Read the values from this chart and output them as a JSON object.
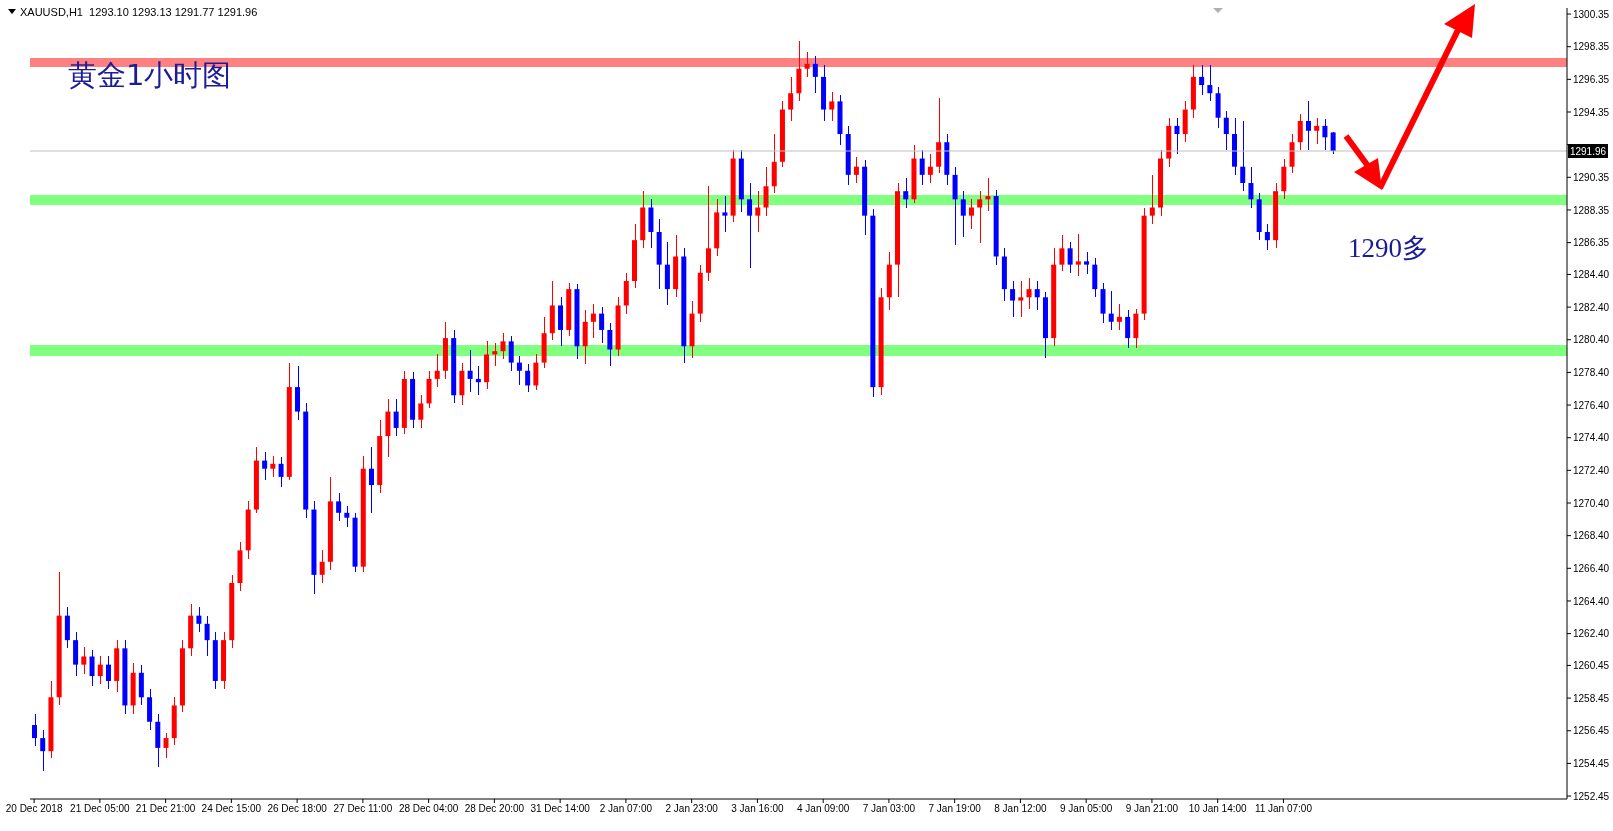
{
  "chart_data": {
    "type": "candlestick",
    "title": "黄金1小时图",
    "annotations": [
      "XAUUSD,H1  1293.10 1293.13 1291.77 1291.96",
      "1290多"
    ],
    "categories": [
      "20 Dec 2018",
      null,
      null,
      null,
      null,
      null,
      null,
      null,
      "21 Dec 05:00",
      null,
      null,
      null,
      null,
      null,
      null,
      null,
      "21 Dec 21:00",
      null,
      null,
      null,
      null,
      null,
      null,
      null,
      "24 Dec 15:00",
      null,
      null,
      null,
      null,
      null,
      null,
      null,
      "26 Dec 18:00",
      null,
      null,
      null,
      null,
      null,
      null,
      null,
      "27 Dec 11:00",
      null,
      null,
      null,
      null,
      null,
      null,
      null,
      "28 Dec 04:00",
      null,
      null,
      null,
      null,
      null,
      null,
      null,
      "28 Dec 20:00",
      null,
      null,
      null,
      null,
      null,
      null,
      null,
      "31 Dec 14:00",
      null,
      null,
      null,
      null,
      null,
      null,
      null,
      "2 Jan 07:00",
      null,
      null,
      null,
      null,
      null,
      null,
      null,
      "2 Jan 23:00",
      null,
      null,
      null,
      null,
      null,
      null,
      null,
      "3 Jan 16:00",
      null,
      null,
      null,
      null,
      null,
      null,
      null,
      "4 Jan 09:00",
      null,
      null,
      null,
      null,
      null,
      null,
      null,
      "7 Jan 03:00",
      null,
      null,
      null,
      null,
      null,
      null,
      null,
      "7 Jan 19:00",
      null,
      null,
      null,
      null,
      null,
      null,
      null,
      "8 Jan 12:00",
      null,
      null,
      null,
      null,
      null,
      null,
      null,
      "9 Jan 05:00",
      null,
      null,
      null,
      null,
      null,
      null,
      null,
      "9 Jan 21:00",
      null,
      null,
      null,
      null,
      null,
      null,
      null,
      "10 Jan 14:00",
      null,
      null,
      null,
      null,
      null,
      null,
      null,
      "11 Jan 07:00",
      null,
      null,
      null,
      null,
      null,
      null,
      null,
      null,
      null,
      null,
      null,
      null,
      null,
      null,
      null,
      null,
      null,
      null,
      null,
      null,
      null,
      null,
      null,
      null,
      null,
      null,
      null,
      null,
      null,
      null,
      null,
      null,
      null,
      null
    ],
    "ohlc": [
      [
        1256.8,
        1257.5,
        1255.5,
        1256.0
      ],
      [
        1256.0,
        1256.5,
        1254.0,
        1255.2
      ],
      [
        1255.2,
        1259.5,
        1254.8,
        1258.5
      ],
      [
        1258.5,
        1266.2,
        1258.0,
        1263.5
      ],
      [
        1263.5,
        1264.0,
        1261.5,
        1262.0
      ],
      [
        1262.0,
        1262.5,
        1259.8,
        1260.5
      ],
      [
        1260.5,
        1261.6,
        1259.9,
        1261.0
      ],
      [
        1261.0,
        1261.4,
        1259.2,
        1259.8
      ],
      [
        1259.8,
        1261.0,
        1259.3,
        1260.5
      ],
      [
        1260.5,
        1261.0,
        1259.0,
        1259.5
      ],
      [
        1259.5,
        1262.0,
        1258.8,
        1261.5
      ],
      [
        1261.5,
        1262.0,
        1257.5,
        1258.0
      ],
      [
        1258.0,
        1260.6,
        1257.5,
        1260.0
      ],
      [
        1260.0,
        1260.5,
        1258.0,
        1258.5
      ],
      [
        1258.5,
        1259.0,
        1256.5,
        1257.0
      ],
      [
        1257.0,
        1257.5,
        1254.2,
        1255.4
      ],
      [
        1255.4,
        1256.3,
        1254.8,
        1256.0
      ],
      [
        1256.0,
        1258.5,
        1255.6,
        1258.0
      ],
      [
        1258.0,
        1262.0,
        1257.6,
        1261.5
      ],
      [
        1261.5,
        1264.2,
        1261.0,
        1263.5
      ],
      [
        1263.5,
        1264.0,
        1262.5,
        1263.0
      ],
      [
        1263.0,
        1263.5,
        1261.0,
        1262.0
      ],
      [
        1262.0,
        1262.5,
        1259.0,
        1259.5
      ],
      [
        1259.5,
        1262.5,
        1259.0,
        1262.0
      ],
      [
        1262.0,
        1266.0,
        1261.5,
        1265.5
      ],
      [
        1265.5,
        1268.0,
        1265.0,
        1267.5
      ],
      [
        1267.5,
        1270.5,
        1267.0,
        1270.0
      ],
      [
        1270.0,
        1273.8,
        1269.8,
        1273.0
      ],
      [
        1273.0,
        1273.5,
        1271.8,
        1272.5
      ],
      [
        1272.5,
        1273.3,
        1272.0,
        1272.8
      ],
      [
        1272.8,
        1273.2,
        1271.4,
        1272.0
      ],
      [
        1272.0,
        1279.0,
        1271.8,
        1277.5
      ],
      [
        1277.5,
        1278.8,
        1275.5,
        1276.0
      ],
      [
        1276.0,
        1276.5,
        1269.5,
        1270.0
      ],
      [
        1270.0,
        1270.5,
        1264.8,
        1266.0
      ],
      [
        1266.0,
        1267.5,
        1265.5,
        1266.8
      ],
      [
        1266.8,
        1272.0,
        1266.3,
        1270.5
      ],
      [
        1270.5,
        1271.0,
        1269.3,
        1269.8
      ],
      [
        1269.8,
        1270.2,
        1268.9,
        1269.5
      ],
      [
        1269.5,
        1269.8,
        1266.2,
        1266.5
      ],
      [
        1266.5,
        1273.3,
        1266.2,
        1272.5
      ],
      [
        1272.5,
        1273.8,
        1269.8,
        1271.5
      ],
      [
        1271.5,
        1275.5,
        1271.0,
        1274.5
      ],
      [
        1274.5,
        1276.8,
        1273.2,
        1276.0
      ],
      [
        1276.0,
        1276.8,
        1274.5,
        1275.0
      ],
      [
        1275.0,
        1278.5,
        1274.6,
        1278.0
      ],
      [
        1278.0,
        1278.4,
        1275.0,
        1275.5
      ],
      [
        1275.5,
        1277.0,
        1275.0,
        1276.5
      ],
      [
        1276.5,
        1278.5,
        1276.2,
        1278.0
      ],
      [
        1278.0,
        1279.5,
        1277.5,
        1278.5
      ],
      [
        1278.5,
        1281.5,
        1278.0,
        1280.5
      ],
      [
        1280.5,
        1281.0,
        1276.5,
        1277.0
      ],
      [
        1277.0,
        1279.0,
        1276.4,
        1278.5
      ],
      [
        1278.5,
        1279.8,
        1277.2,
        1278.0
      ],
      [
        1278.0,
        1278.8,
        1277.0,
        1277.8
      ],
      [
        1277.8,
        1280.3,
        1277.4,
        1279.5
      ],
      [
        1279.5,
        1280.2,
        1278.8,
        1279.7
      ],
      [
        1279.7,
        1280.8,
        1279.2,
        1280.3
      ],
      [
        1280.3,
        1280.6,
        1278.5,
        1279.0
      ],
      [
        1279.0,
        1279.4,
        1277.6,
        1278.5
      ],
      [
        1278.5,
        1278.9,
        1277.2,
        1277.6
      ],
      [
        1277.6,
        1279.5,
        1277.3,
        1279.0
      ],
      [
        1279.0,
        1281.8,
        1278.7,
        1280.8
      ],
      [
        1280.8,
        1284.0,
        1280.4,
        1282.5
      ],
      [
        1282.5,
        1283.0,
        1280.0,
        1281.0
      ],
      [
        1281.0,
        1283.9,
        1280.6,
        1283.5
      ],
      [
        1283.5,
        1283.8,
        1279.2,
        1280.0
      ],
      [
        1280.0,
        1282.2,
        1278.9,
        1281.5
      ],
      [
        1281.5,
        1282.6,
        1280.5,
        1282.0
      ],
      [
        1282.0,
        1282.4,
        1280.2,
        1281.0
      ],
      [
        1281.0,
        1281.4,
        1278.8,
        1279.8
      ],
      [
        1279.8,
        1283.0,
        1279.4,
        1282.5
      ],
      [
        1282.5,
        1284.5,
        1282.0,
        1284.0
      ],
      [
        1284.0,
        1287.5,
        1283.6,
        1286.5
      ],
      [
        1286.5,
        1289.5,
        1286.0,
        1288.5
      ],
      [
        1288.5,
        1289.0,
        1286.0,
        1287.0
      ],
      [
        1287.0,
        1287.8,
        1283.5,
        1285.0
      ],
      [
        1285.0,
        1286.4,
        1282.5,
        1283.5
      ],
      [
        1283.5,
        1286.8,
        1283.0,
        1285.5
      ],
      [
        1285.5,
        1286.0,
        1279.0,
        1280.0
      ],
      [
        1280.0,
        1282.8,
        1279.3,
        1282.0
      ],
      [
        1282.0,
        1285.0,
        1281.5,
        1284.5
      ],
      [
        1284.5,
        1289.8,
        1284.0,
        1286.0
      ],
      [
        1286.0,
        1289.0,
        1285.5,
        1288.2
      ],
      [
        1288.2,
        1289.2,
        1287.0,
        1288.0
      ],
      [
        1288.0,
        1292.0,
        1287.6,
        1291.5
      ],
      [
        1291.5,
        1292.0,
        1288.2,
        1289.0
      ],
      [
        1289.0,
        1290.0,
        1284.8,
        1288.0
      ],
      [
        1288.0,
        1289.5,
        1287.0,
        1288.5
      ],
      [
        1288.5,
        1291.0,
        1288.0,
        1289.8
      ],
      [
        1289.8,
        1293.0,
        1289.4,
        1291.3
      ],
      [
        1291.3,
        1295.0,
        1291.0,
        1294.5
      ],
      [
        1294.5,
        1296.5,
        1293.8,
        1295.5
      ],
      [
        1295.5,
        1298.7,
        1295.0,
        1297.0
      ],
      [
        1297.0,
        1298.0,
        1296.5,
        1297.3
      ],
      [
        1297.3,
        1297.8,
        1295.5,
        1296.5
      ],
      [
        1296.5,
        1297.2,
        1293.8,
        1294.5
      ],
      [
        1294.5,
        1295.6,
        1293.8,
        1295.0
      ],
      [
        1295.0,
        1295.4,
        1292.3,
        1293.0
      ],
      [
        1293.0,
        1293.5,
        1289.9,
        1290.5
      ],
      [
        1290.5,
        1291.6,
        1290.0,
        1291.0
      ],
      [
        1291.0,
        1291.4,
        1286.8,
        1288.0
      ],
      [
        1288.0,
        1288.4,
        1276.9,
        1277.5
      ],
      [
        1277.5,
        1283.6,
        1277.0,
        1283.0
      ],
      [
        1283.0,
        1285.8,
        1282.2,
        1285.0
      ],
      [
        1285.0,
        1290.0,
        1283.0,
        1289.5
      ],
      [
        1289.5,
        1290.3,
        1288.5,
        1289.0
      ],
      [
        1289.0,
        1292.3,
        1288.8,
        1291.5
      ],
      [
        1291.5,
        1292.0,
        1289.9,
        1290.5
      ],
      [
        1290.5,
        1291.8,
        1290.0,
        1291.0
      ],
      [
        1291.0,
        1295.2,
        1290.6,
        1292.5
      ],
      [
        1292.5,
        1293.0,
        1289.9,
        1290.5
      ],
      [
        1290.5,
        1291.0,
        1286.2,
        1289.0
      ],
      [
        1289.0,
        1289.5,
        1286.7,
        1288.0
      ],
      [
        1288.0,
        1289.0,
        1287.2,
        1288.5
      ],
      [
        1288.5,
        1289.5,
        1286.3,
        1289.0
      ],
      [
        1289.0,
        1290.3,
        1288.3,
        1289.2
      ],
      [
        1289.2,
        1289.6,
        1285.0,
        1285.5
      ],
      [
        1285.5,
        1286.0,
        1282.8,
        1283.5
      ],
      [
        1283.5,
        1284.0,
        1281.8,
        1282.8
      ],
      [
        1282.8,
        1284.0,
        1281.8,
        1283.0
      ],
      [
        1283.0,
        1284.2,
        1282.3,
        1283.5
      ],
      [
        1283.5,
        1284.0,
        1282.2,
        1283.0
      ],
      [
        1283.0,
        1283.3,
        1279.3,
        1280.5
      ],
      [
        1280.5,
        1286.0,
        1280.0,
        1285.0
      ],
      [
        1285.0,
        1286.8,
        1284.6,
        1286.0
      ],
      [
        1286.0,
        1286.4,
        1284.5,
        1285.0
      ],
      [
        1285.0,
        1286.9,
        1284.3,
        1285.2
      ],
      [
        1285.2,
        1285.8,
        1284.4,
        1285.0
      ],
      [
        1285.0,
        1285.4,
        1283.0,
        1283.5
      ],
      [
        1283.5,
        1283.9,
        1281.4,
        1282.0
      ],
      [
        1282.0,
        1283.4,
        1281.0,
        1281.5
      ],
      [
        1281.5,
        1282.6,
        1281.0,
        1281.8
      ],
      [
        1281.8,
        1282.2,
        1279.9,
        1280.5
      ],
      [
        1280.5,
        1282.3,
        1279.9,
        1282.0
      ],
      [
        1282.0,
        1288.5,
        1281.6,
        1288.0
      ],
      [
        1288.0,
        1290.5,
        1287.5,
        1288.5
      ],
      [
        1288.5,
        1292.0,
        1288.0,
        1291.5
      ],
      [
        1291.5,
        1294.0,
        1291.0,
        1293.5
      ],
      [
        1293.5,
        1294.0,
        1291.8,
        1293.0
      ],
      [
        1293.0,
        1295.0,
        1292.5,
        1294.5
      ],
      [
        1294.5,
        1297.2,
        1294.0,
        1296.5
      ],
      [
        1296.5,
        1297.2,
        1295.4,
        1296.0
      ],
      [
        1296.0,
        1297.2,
        1295.0,
        1295.5
      ],
      [
        1295.5,
        1295.9,
        1293.4,
        1294.0
      ],
      [
        1294.0,
        1294.4,
        1292.0,
        1293.0
      ],
      [
        1293.0,
        1294.0,
        1290.5,
        1291.0
      ],
      [
        1291.0,
        1293.8,
        1289.5,
        1290.0
      ],
      [
        1290.0,
        1291.0,
        1288.5,
        1289.0
      ],
      [
        1289.0,
        1289.4,
        1286.5,
        1287.0
      ],
      [
        1287.0,
        1287.5,
        1285.9,
        1286.5
      ],
      [
        1286.5,
        1290.0,
        1286.0,
        1289.5
      ],
      [
        1289.5,
        1291.5,
        1289.0,
        1291.0
      ],
      [
        1291.0,
        1293.0,
        1290.6,
        1292.5
      ],
      [
        1292.5,
        1294.2,
        1292.0,
        1293.8
      ],
      [
        1293.8,
        1295.0,
        1292.0,
        1293.2
      ],
      [
        1293.2,
        1294.0,
        1292.4,
        1293.5
      ],
      [
        1293.5,
        1293.9,
        1292.0,
        1292.8
      ],
      [
        1293.1,
        1293.13,
        1291.77,
        1291.96
      ],
      null,
      null,
      null,
      null,
      null,
      null,
      null,
      null,
      null,
      null,
      null,
      null,
      null,
      null,
      null,
      null,
      null,
      null,
      null,
      null,
      null,
      null,
      null,
      null,
      null,
      null,
      null,
      null
    ],
    "colors": [
      "#0000ff",
      "#0000ff",
      "#ff0000",
      "#ff0000",
      "#0000ff",
      "#0000ff",
      "#ff0000",
      "#0000ff",
      "#ff0000",
      "#0000ff",
      "#ff0000",
      "#0000ff",
      "#ff0000",
      "#0000ff",
      "#0000ff",
      "#0000ff",
      "#ff0000",
      "#ff0000",
      "#ff0000",
      "#ff0000",
      "#0000ff",
      "#0000ff",
      "#0000ff",
      "#ff0000",
      "#ff0000",
      "#ff0000",
      "#ff0000",
      "#ff0000",
      "#0000ff",
      "#ff0000",
      "#0000ff",
      "#ff0000",
      "#0000ff",
      "#0000ff",
      "#0000ff",
      "#ff0000",
      "#ff0000",
      "#0000ff",
      "#0000ff",
      "#0000ff",
      "#ff0000",
      "#0000ff",
      "#ff0000",
      "#ff0000",
      "#0000ff",
      "#ff0000",
      "#0000ff",
      "#ff0000",
      "#ff0000",
      "#ff0000",
      "#ff0000",
      "#0000ff",
      "#ff0000",
      "#0000ff",
      "#0000ff",
      "#ff0000",
      "#ff0000",
      "#ff0000",
      "#0000ff",
      "#0000ff",
      "#0000ff",
      "#ff0000",
      "#ff0000",
      "#ff0000",
      "#0000ff",
      "#ff0000",
      "#0000ff",
      "#ff0000",
      "#ff0000",
      "#0000ff",
      "#0000ff",
      "#ff0000",
      "#ff0000",
      "#ff0000",
      "#ff0000",
      "#0000ff",
      "#0000ff",
      "#0000ff",
      "#ff0000",
      "#0000ff",
      "#ff0000",
      "#ff0000",
      "#ff0000",
      "#ff0000",
      "#0000ff",
      "#ff0000",
      "#0000ff",
      "#0000ff",
      "#ff0000",
      "#ff0000",
      "#ff0000",
      "#ff0000",
      "#ff0000",
      "#ff0000",
      "#ff0000",
      "#0000ff",
      "#0000ff",
      "#ff0000",
      "#0000ff",
      "#0000ff",
      "#ff0000",
      "#0000ff",
      "#0000ff",
      "#ff0000",
      "#ff0000",
      "#ff0000",
      "#0000ff",
      "#ff0000",
      "#0000ff",
      "#ff0000",
      "#ff0000",
      "#0000ff",
      "#0000ff",
      "#0000ff",
      "#ff0000",
      "#ff0000",
      "#ff0000",
      "#0000ff",
      "#0000ff",
      "#0000ff",
      "#ff0000",
      "#ff0000",
      "#0000ff",
      "#0000ff",
      "#ff0000",
      "#ff0000",
      "#0000ff",
      "#ff0000",
      "#0000ff",
      "#0000ff",
      "#0000ff",
      "#0000ff",
      "#ff0000",
      "#0000ff",
      "#ff0000",
      "#ff0000",
      "#ff0000",
      "#ff0000",
      "#ff0000",
      "#0000ff",
      "#ff0000",
      "#ff0000",
      "#0000ff",
      "#0000ff",
      "#0000ff",
      "#0000ff",
      "#0000ff",
      "#0000ff",
      "#0000ff",
      "#0000ff",
      "#0000ff",
      "#ff0000",
      "#ff0000",
      "#ff0000",
      "#ff0000",
      "#0000ff",
      "#ff0000",
      "#0000ff",
      "#0000ff",
      null,
      null,
      null,
      null,
      null,
      null,
      null,
      null,
      null,
      null,
      null,
      null,
      null,
      null,
      null,
      null,
      null,
      null,
      null,
      null,
      null,
      null,
      null,
      null,
      null,
      null,
      null,
      null
    ],
    "ylim": [
      1252.27,
      1300.72
    ],
    "yticks": [
      {
        "value": 1300.35,
        "label": "1300.35"
      },
      {
        "value": 1298.35,
        "label": "1298.35"
      },
      {
        "value": 1296.35,
        "label": "1296.35"
      },
      {
        "value": 1294.35,
        "label": "1294.35"
      },
      {
        "value": 1292.35,
        "label": null
      },
      {
        "value": 1290.35,
        "label": "1290.35"
      },
      {
        "value": 1288.35,
        "label": "1288.35"
      },
      {
        "value": 1286.35,
        "label": "1286.35"
      },
      {
        "value": 1284.4,
        "label": "1284.40"
      },
      {
        "value": 1282.4,
        "label": "1282.40"
      },
      {
        "value": 1280.4,
        "label": "1280.40"
      },
      {
        "value": 1278.4,
        "label": "1278.40"
      },
      {
        "value": 1276.4,
        "label": "1276.40"
      },
      {
        "value": 1274.4,
        "label": "1274.40"
      },
      {
        "value": 1272.4,
        "label": "1272.40"
      },
      {
        "value": 1270.4,
        "label": "1270.40"
      },
      {
        "value": 1268.4,
        "label": "1268.40"
      },
      {
        "value": 1266.4,
        "label": "1266.40"
      },
      {
        "value": 1264.4,
        "label": "1264.40"
      },
      {
        "value": 1262.4,
        "label": "1262.40"
      },
      {
        "value": 1260.45,
        "label": "1260.45"
      },
      {
        "value": 1258.45,
        "label": "1258.45"
      },
      {
        "value": 1256.45,
        "label": "1256.45"
      },
      {
        "value": 1254.45,
        "label": "1254.45"
      },
      {
        "value": 1252.45,
        "label": "1252.45"
      }
    ],
    "ref_lines": [
      {
        "axis": "y",
        "value": 1291.96,
        "label": "1291.96",
        "color": "#c0c0c0"
      }
    ],
    "bands": [
      {
        "axis": "y",
        "from": 1297.1,
        "to": 1297.66,
        "color": "#ff8080"
      },
      {
        "axis": "y",
        "from": 1288.67,
        "to": 1289.28,
        "color": "#80ff80"
      },
      {
        "axis": "y",
        "from": 1279.43,
        "to": 1280.1,
        "color": "#80ff80"
      }
    ],
    "tick_labels": true
  }
}
